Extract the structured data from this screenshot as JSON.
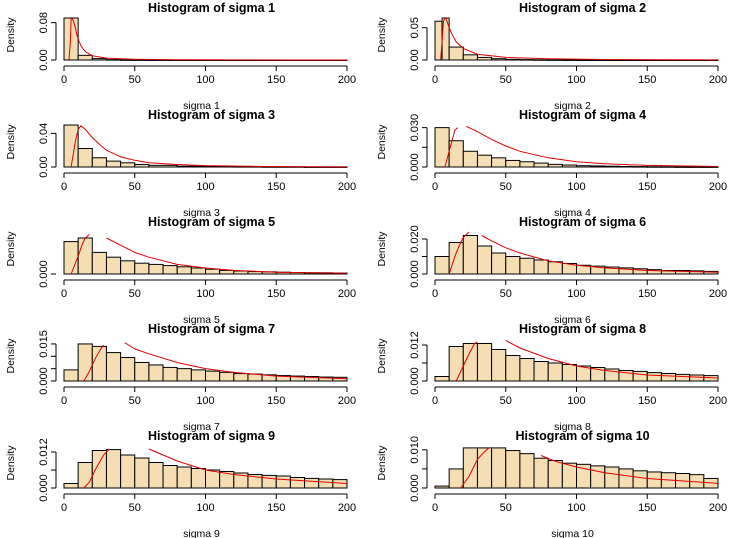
{
  "colors": {
    "bar_fill": "#f5deb3",
    "bar_stroke": "#000000",
    "curve": "#e00000",
    "axis": "#000000"
  },
  "chart_data": [
    {
      "type": "bar",
      "title": "Histogram of sigma 1",
      "xlabel": "sigma 1",
      "ylabel": "Density",
      "xlim": [
        0,
        200
      ],
      "ylim": [
        0,
        0.09
      ],
      "xticks": [
        0,
        50,
        100,
        150,
        200
      ],
      "yticks": [
        0.0,
        0.08
      ],
      "ytick_labels": [
        "0.00",
        "0.08"
      ],
      "bin_edges": [
        0,
        10,
        20,
        30,
        40,
        50,
        60,
        70,
        80,
        90,
        100,
        110,
        120,
        130,
        140,
        150,
        160,
        170,
        180,
        190,
        200
      ],
      "values": [
        0.09,
        0.01,
        0.003,
        0.0008,
        0.0003,
        0.0002,
        0.0001,
        0.0001,
        0,
        0,
        0,
        0,
        0,
        0,
        0,
        0,
        0,
        0,
        0,
        0
      ],
      "curve": {
        "x": [
          3.5,
          4.5,
          5,
          6,
          7,
          8,
          9,
          10,
          12,
          15,
          20,
          30,
          50,
          80,
          120,
          160,
          200
        ],
        "y": [
          0.001,
          0.04,
          0.089,
          0.088,
          0.08,
          0.07,
          0.055,
          0.045,
          0.03,
          0.018,
          0.009,
          0.004,
          0.0015,
          0.0006,
          0.0003,
          0.0001,
          5e-05
        ]
      }
    },
    {
      "type": "bar",
      "title": "Histogram of sigma 2",
      "xlabel": "sigma 2",
      "ylabel": "Density",
      "xlim": [
        0,
        200
      ],
      "ylim": [
        0,
        0.065
      ],
      "xticks": [
        0,
        50,
        100,
        150,
        200
      ],
      "yticks": [
        0.0,
        0.05
      ],
      "ytick_labels": [
        "0.00",
        "0.05"
      ],
      "bin_edges": [
        0,
        5,
        10,
        20,
        30,
        40,
        50,
        60,
        70,
        80,
        90,
        100,
        110,
        120,
        130,
        140,
        150,
        160,
        170,
        180,
        190,
        200
      ],
      "values": [
        0.06,
        0.065,
        0.02,
        0.008,
        0.004,
        0.002,
        0.001,
        0.0006,
        0.0003,
        0.0002,
        0.0001,
        0,
        0,
        0,
        0,
        0,
        0,
        0,
        0,
        0,
        0
      ],
      "curve": {
        "x": [
          4,
          5,
          6,
          7,
          8,
          10,
          12,
          15,
          20,
          30,
          50,
          80,
          120,
          160,
          200
        ],
        "y": [
          0.001,
          0.03,
          0.06,
          0.065,
          0.063,
          0.05,
          0.04,
          0.028,
          0.018,
          0.009,
          0.004,
          0.0018,
          0.0008,
          0.0004,
          0.0002
        ]
      }
    },
    {
      "type": "bar",
      "title": "Histogram of sigma 3",
      "xlabel": "sigma 3",
      "ylabel": "Density",
      "xlim": [
        0,
        200
      ],
      "ylim": [
        0,
        0.05
      ],
      "xticks": [
        0,
        50,
        100,
        150,
        200
      ],
      "yticks": [
        0.0,
        0.04
      ],
      "ytick_labels": [
        "0.00",
        "0.04"
      ],
      "bin_edges": [
        0,
        10,
        20,
        30,
        40,
        50,
        60,
        80,
        100,
        120,
        140,
        170,
        200
      ],
      "values": [
        0.05,
        0.022,
        0.011,
        0.007,
        0.005,
        0.003,
        0.002,
        0.001,
        0.0008,
        0.0005,
        0.0003,
        0.0001
      ],
      "curve": {
        "x": [
          5,
          8,
          10,
          12,
          15,
          20,
          25,
          30,
          40,
          50,
          60,
          80,
          100,
          130,
          170,
          200
        ],
        "y": [
          0.0,
          0.03,
          0.045,
          0.049,
          0.045,
          0.035,
          0.027,
          0.02,
          0.012,
          0.008,
          0.005,
          0.003,
          0.0017,
          0.0008,
          0.0003,
          0.0001
        ]
      }
    },
    {
      "type": "bar",
      "title": "Histogram of sigma 4",
      "xlabel": "sigma 4",
      "ylabel": "Density",
      "xlim": [
        0,
        200
      ],
      "ylim": [
        0,
        0.032
      ],
      "xticks": [
        0,
        50,
        100,
        150,
        200
      ],
      "yticks": [
        0.0,
        0.015,
        0.03
      ],
      "ytick_labels": [
        "0.000",
        "",
        "0.030"
      ],
      "bin_edges": [
        0,
        10,
        20,
        30,
        40,
        50,
        60,
        70,
        80,
        90,
        100,
        110,
        120,
        130,
        140,
        150,
        160,
        170,
        180,
        190,
        200
      ],
      "values": [
        0.03,
        0.02,
        0.012,
        0.009,
        0.007,
        0.005,
        0.004,
        0.003,
        0.002,
        0.0015,
        0.001,
        0.0008,
        0.0006,
        0.0004,
        0.0003,
        0.0002,
        0.0002,
        0.0001,
        0.0001,
        0.0001
      ],
      "curve": {
        "x": [
          7,
          10,
          12,
          14,
          16
        ],
        "y": [
          0.0,
          0.012,
          0.02,
          0.028,
          0.03
        ],
        "x2": [
          22,
          30,
          40,
          50,
          60,
          80,
          100,
          120,
          150,
          200
        ],
        "y2": [
          0.031,
          0.027,
          0.021,
          0.016,
          0.012,
          0.007,
          0.004,
          0.0025,
          0.0012,
          0.0004
        ]
      }
    },
    {
      "type": "bar",
      "title": "Histogram of sigma 5",
      "xlabel": "sigma 5",
      "ylabel": "Density",
      "xlim": [
        0,
        200
      ],
      "ylim": [
        0,
        0.035
      ],
      "xticks": [
        0,
        50,
        100,
        150,
        200
      ],
      "yticks": [
        0.0
      ],
      "ytick_labels": [
        "0.000"
      ],
      "bin_edges": [
        0,
        10,
        20,
        30,
        40,
        50,
        60,
        70,
        80,
        90,
        100,
        110,
        120,
        130,
        140,
        150,
        160,
        170,
        180,
        190,
        200
      ],
      "values": [
        0.027,
        0.03,
        0.018,
        0.014,
        0.011,
        0.009,
        0.008,
        0.007,
        0.006,
        0.005,
        0.004,
        0.003,
        0.0025,
        0.002,
        0.0018,
        0.0015,
        0.0012,
        0.001,
        0.001,
        0.0008
      ],
      "curve": {
        "x": [
          5,
          10,
          13,
          15,
          18
        ],
        "y": [
          0.0,
          0.015,
          0.025,
          0.03,
          0.033
        ],
        "x2": [
          30,
          40,
          50,
          60,
          80,
          100,
          120,
          150,
          200
        ],
        "y2": [
          0.03,
          0.024,
          0.018,
          0.014,
          0.008,
          0.005,
          0.003,
          0.0015,
          0.0006
        ]
      }
    },
    {
      "type": "bar",
      "title": "Histogram of sigma 6",
      "xlabel": "sigma 6",
      "ylabel": "Density",
      "xlim": [
        0,
        200
      ],
      "ylim": [
        0,
        0.024
      ],
      "xticks": [
        0,
        50,
        100,
        150,
        200
      ],
      "yticks": [
        0.0,
        0.01,
        0.02
      ],
      "ytick_labels": [
        "0.000",
        "",
        "0.020"
      ],
      "bin_edges": [
        0,
        10,
        20,
        30,
        40,
        50,
        60,
        70,
        80,
        90,
        100,
        110,
        120,
        130,
        140,
        150,
        160,
        170,
        180,
        190,
        200
      ],
      "values": [
        0.01,
        0.018,
        0.022,
        0.016,
        0.012,
        0.01,
        0.009,
        0.008,
        0.007,
        0.006,
        0.005,
        0.0045,
        0.004,
        0.0035,
        0.003,
        0.0025,
        0.002,
        0.002,
        0.0018,
        0.0015
      ],
      "curve": {
        "x": [
          10,
          14,
          17,
          20,
          24
        ],
        "y": [
          0.0,
          0.01,
          0.016,
          0.021,
          0.024
        ],
        "x2": [
          33,
          40,
          50,
          60,
          80,
          100,
          120,
          150,
          200
        ],
        "y2": [
          0.022,
          0.019,
          0.015,
          0.012,
          0.0075,
          0.005,
          0.0035,
          0.002,
          0.001
        ]
      }
    },
    {
      "type": "bar",
      "title": "Histogram of sigma 7",
      "xlabel": "sigma 7",
      "ylabel": "Density",
      "xlim": [
        0,
        200
      ],
      "ylim": [
        0,
        0.017
      ],
      "xticks": [
        0,
        50,
        100,
        150,
        200
      ],
      "yticks": [
        0.0,
        0.005,
        0.01,
        0.015
      ],
      "ytick_labels": [
        "0.000",
        "",
        "",
        "0.015"
      ],
      "bin_edges": [
        0,
        10,
        20,
        30,
        40,
        50,
        60,
        70,
        80,
        90,
        100,
        110,
        120,
        130,
        140,
        150,
        160,
        170,
        180,
        190,
        200
      ],
      "values": [
        0.0045,
        0.015,
        0.014,
        0.0115,
        0.0095,
        0.0075,
        0.0065,
        0.0055,
        0.005,
        0.0045,
        0.004,
        0.0035,
        0.003,
        0.0028,
        0.0025,
        0.0022,
        0.002,
        0.0018,
        0.0016,
        0.0015
      ],
      "curve": {
        "x": [
          14,
          18,
          22,
          26,
          28
        ],
        "y": [
          0.0,
          0.004,
          0.009,
          0.013,
          0.0145
        ],
        "x2": [
          43,
          50,
          60,
          80,
          100,
          120,
          150,
          200
        ],
        "y2": [
          0.0155,
          0.013,
          0.011,
          0.0075,
          0.005,
          0.0035,
          0.002,
          0.0009
        ]
      }
    },
    {
      "type": "bar",
      "title": "Histogram of sigma 8",
      "xlabel": "sigma 8",
      "ylabel": "Density",
      "xlim": [
        0,
        200
      ],
      "ylim": [
        0,
        0.014
      ],
      "xticks": [
        0,
        50,
        100,
        150,
        200
      ],
      "yticks": [
        0.0,
        0.006,
        0.012
      ],
      "ytick_labels": [
        "0.000",
        "",
        "0.012"
      ],
      "bin_edges": [
        0,
        10,
        20,
        30,
        40,
        50,
        60,
        70,
        80,
        90,
        100,
        110,
        120,
        130,
        140,
        150,
        160,
        170,
        180,
        190,
        200
      ],
      "values": [
        0.0015,
        0.0115,
        0.0125,
        0.0125,
        0.0105,
        0.0085,
        0.0075,
        0.0065,
        0.006,
        0.0055,
        0.005,
        0.0045,
        0.004,
        0.0035,
        0.0032,
        0.0028,
        0.0025,
        0.0022,
        0.002,
        0.0018
      ],
      "curve": {
        "x": [
          15,
          20,
          24,
          28,
          30
        ],
        "y": [
          0.0,
          0.005,
          0.009,
          0.0125,
          0.013
        ],
        "x2": [
          50,
          60,
          80,
          100,
          120,
          150,
          200
        ],
        "y2": [
          0.0135,
          0.011,
          0.0075,
          0.005,
          0.0035,
          0.002,
          0.001
        ]
      }
    },
    {
      "type": "bar",
      "title": "Histogram of sigma 9",
      "xlabel": "sigma 9",
      "ylabel": "Density",
      "xlim": [
        0,
        200
      ],
      "ylim": [
        0,
        0.014
      ],
      "xticks": [
        0,
        50,
        100,
        150,
        200
      ],
      "yticks": [
        0.0,
        0.006,
        0.012
      ],
      "ytick_labels": [
        "0.000",
        "",
        "0.012"
      ],
      "bin_edges": [
        0,
        10,
        20,
        30,
        40,
        50,
        60,
        70,
        80,
        90,
        100,
        110,
        120,
        130,
        140,
        150,
        160,
        170,
        180,
        190,
        200
      ],
      "values": [
        0.0015,
        0.0085,
        0.0125,
        0.0128,
        0.011,
        0.01,
        0.0085,
        0.0075,
        0.007,
        0.0065,
        0.006,
        0.0055,
        0.005,
        0.0045,
        0.0042,
        0.004,
        0.0035,
        0.0032,
        0.003,
        0.0028
      ],
      "curve": {
        "x": [
          14,
          18,
          22,
          28,
          32
        ],
        "y": [
          0.0,
          0.002,
          0.006,
          0.011,
          0.013
        ],
        "x2": [
          60,
          70,
          80,
          100,
          120,
          150,
          200
        ],
        "y2": [
          0.013,
          0.011,
          0.009,
          0.006,
          0.0045,
          0.003,
          0.0015
        ]
      }
    },
    {
      "type": "bar",
      "title": "Histogram of sigma 10",
      "xlabel": "sigma 10",
      "ylabel": "Density",
      "xlim": [
        0,
        200
      ],
      "ylim": [
        0,
        0.011
      ],
      "xticks": [
        0,
        50,
        100,
        150,
        200
      ],
      "yticks": [
        0.0,
        0.005,
        0.01
      ],
      "ytick_labels": [
        "0.000",
        "",
        "0.010"
      ],
      "bin_edges": [
        0,
        10,
        20,
        30,
        40,
        50,
        60,
        70,
        80,
        90,
        100,
        110,
        120,
        130,
        140,
        150,
        160,
        170,
        180,
        190,
        200
      ],
      "values": [
        0.0005,
        0.005,
        0.0105,
        0.0105,
        0.0105,
        0.0098,
        0.009,
        0.0078,
        0.0072,
        0.0065,
        0.0062,
        0.0058,
        0.0055,
        0.005,
        0.0045,
        0.0042,
        0.004,
        0.0038,
        0.0035,
        0.0025
      ],
      "curve": {
        "x": [
          18,
          24,
          30,
          35,
          38
        ],
        "y": [
          0.0,
          0.003,
          0.0075,
          0.0095,
          0.0105
        ],
        "x2": [
          75,
          85,
          100,
          120,
          150,
          200
        ],
        "y2": [
          0.0085,
          0.007,
          0.0055,
          0.004,
          0.0025,
          0.0012
        ]
      }
    }
  ]
}
